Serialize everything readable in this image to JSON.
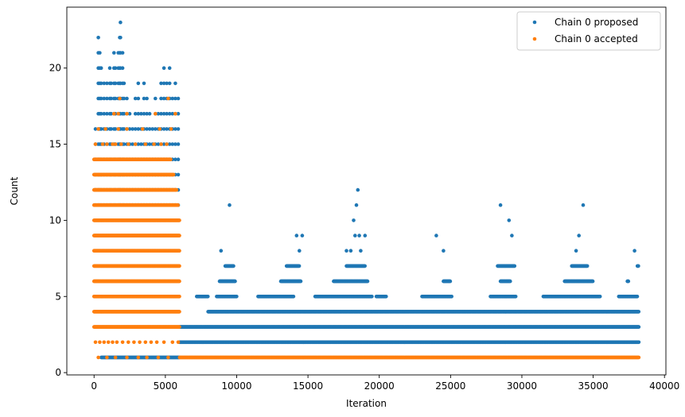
{
  "chart_data": {
    "type": "scatter",
    "title": "",
    "xlabel": "Iteration",
    "ylabel": "Count",
    "xlim": [
      -1910,
      40100
    ],
    "ylim": [
      -0.15,
      24.0
    ],
    "xticks": [
      0,
      5000,
      10000,
      15000,
      20000,
      25000,
      30000,
      35000,
      40000
    ],
    "xtick_labels": [
      "0",
      "5000",
      "10000",
      "15000",
      "20000",
      "25000",
      "30000",
      "35000",
      "40000"
    ],
    "yticks": [
      0,
      5,
      10,
      15,
      20
    ],
    "ytick_labels": [
      "0",
      "5",
      "10",
      "15",
      "20"
    ],
    "grid": false,
    "legend_position": "top-right",
    "series": [
      {
        "name": "Chain 0 proposed",
        "color": "#1f77b4",
        "marker": "circle",
        "bands": [
          {
            "y": 1,
            "x_ranges": [
              [
                500,
                6000
              ]
            ]
          },
          {
            "y": 2,
            "x_ranges": [
              [
                6000,
                38200
              ]
            ]
          },
          {
            "y": 3,
            "x_ranges": [
              [
                6000,
                38200
              ]
            ]
          },
          {
            "y": 4,
            "x_ranges": [
              [
                8000,
                38200
              ]
            ]
          },
          {
            "y": 5,
            "x_ranges": [
              [
                7200,
                8000
              ],
              [
                8600,
                10000
              ],
              [
                11500,
                14000
              ],
              [
                15500,
                19500
              ],
              [
                19800,
                20500
              ],
              [
                23000,
                25100
              ],
              [
                27800,
                29600
              ],
              [
                31500,
                35500
              ],
              [
                36800,
                38100
              ]
            ]
          },
          {
            "y": 6,
            "x_ranges": [
              [
                8800,
                9900
              ],
              [
                13100,
                14500
              ],
              [
                16800,
                19200
              ],
              [
                24500,
                25000
              ],
              [
                28500,
                29200
              ],
              [
                33000,
                35000
              ],
              [
                37400,
                37500
              ]
            ]
          },
          {
            "y": 7,
            "x_ranges": [
              [
                9200,
                9800
              ],
              [
                13500,
                14400
              ],
              [
                17700,
                19000
              ],
              [
                28300,
                29500
              ],
              [
                33500,
                34600
              ],
              [
                38100,
                38200
              ]
            ]
          }
        ],
        "points": [
          [
            8900,
            8
          ],
          [
            9500,
            11
          ],
          [
            14200,
            9
          ],
          [
            14400,
            8
          ],
          [
            14600,
            9
          ],
          [
            17700,
            8
          ],
          [
            18000,
            8
          ],
          [
            18200,
            10
          ],
          [
            18300,
            9
          ],
          [
            18400,
            11
          ],
          [
            18500,
            12
          ],
          [
            18600,
            9
          ],
          [
            18700,
            8
          ],
          [
            19000,
            9
          ],
          [
            24000,
            9
          ],
          [
            24500,
            8
          ],
          [
            28500,
            11
          ],
          [
            29100,
            10
          ],
          [
            29300,
            9
          ],
          [
            33800,
            8
          ],
          [
            34000,
            9
          ],
          [
            34300,
            11
          ],
          [
            37900,
            8
          ]
        ],
        "early_column_maxima": [
          [
            100,
            16
          ],
          [
            300,
            22
          ],
          [
            400,
            21
          ],
          [
            500,
            20
          ],
          [
            700,
            19
          ],
          [
            900,
            19
          ],
          [
            1100,
            20
          ],
          [
            1200,
            19
          ],
          [
            1400,
            21
          ],
          [
            1500,
            20
          ],
          [
            1700,
            21
          ],
          [
            1800,
            22
          ],
          [
            1850,
            23
          ],
          [
            2000,
            21
          ],
          [
            2100,
            19
          ],
          [
            2300,
            18
          ],
          [
            2500,
            17
          ],
          [
            2700,
            16
          ],
          [
            2900,
            18
          ],
          [
            3100,
            19
          ],
          [
            3300,
            17
          ],
          [
            3500,
            19
          ],
          [
            3700,
            18
          ],
          [
            3900,
            17
          ],
          [
            4100,
            16
          ],
          [
            4300,
            18
          ],
          [
            4500,
            17
          ],
          [
            4700,
            19
          ],
          [
            4900,
            20
          ],
          [
            5100,
            19
          ],
          [
            5300,
            20
          ],
          [
            5500,
            18
          ],
          [
            5700,
            19
          ],
          [
            5900,
            18
          ]
        ]
      },
      {
        "name": "Chain 0 accepted",
        "color": "#ff7f0e",
        "marker": "circle",
        "bands": [
          {
            "y": 1,
            "x_ranges": [
              [
                6000,
                38200
              ]
            ]
          },
          {
            "y": 3,
            "x_ranges": [
              [
                0,
                6000
              ]
            ]
          },
          {
            "y": 4,
            "x_ranges": [
              [
                0,
                6000
              ]
            ]
          },
          {
            "y": 5,
            "x_ranges": [
              [
                0,
                6000
              ]
            ]
          },
          {
            "y": 6,
            "x_ranges": [
              [
                0,
                6000
              ]
            ]
          },
          {
            "y": 7,
            "x_ranges": [
              [
                0,
                6000
              ]
            ]
          },
          {
            "y": 8,
            "x_ranges": [
              [
                0,
                6000
              ]
            ]
          },
          {
            "y": 9,
            "x_ranges": [
              [
                0,
                6000
              ]
            ]
          },
          {
            "y": 10,
            "x_ranges": [
              [
                0,
                6000
              ]
            ]
          },
          {
            "y": 11,
            "x_ranges": [
              [
                0,
                5900
              ]
            ]
          },
          {
            "y": 12,
            "x_ranges": [
              [
                0,
                5800
              ]
            ]
          },
          {
            "y": 13,
            "x_ranges": [
              [
                0,
                5600
              ]
            ]
          },
          {
            "y": 14,
            "x_ranges": [
              [
                0,
                5400
              ]
            ]
          }
        ],
        "points": [
          [
            100,
            2
          ],
          [
            400,
            2
          ],
          [
            700,
            2
          ],
          [
            1000,
            2
          ],
          [
            1300,
            2
          ],
          [
            1600,
            2
          ],
          [
            2000,
            2
          ],
          [
            2400,
            2
          ],
          [
            2800,
            2
          ],
          [
            3200,
            2
          ],
          [
            3600,
            2
          ],
          [
            4000,
            2
          ],
          [
            4400,
            2
          ],
          [
            4900,
            2
          ],
          [
            5500,
            2
          ],
          [
            5900,
            2
          ],
          [
            300,
            1
          ],
          [
            900,
            1
          ],
          [
            1500,
            1
          ],
          [
            2300,
            1
          ],
          [
            3100,
            1
          ],
          [
            3700,
            1
          ],
          [
            4500,
            1
          ],
          [
            5200,
            1
          ],
          [
            100,
            15
          ],
          [
            600,
            15
          ],
          [
            900,
            15
          ],
          [
            1300,
            15
          ],
          [
            1500,
            15
          ],
          [
            1900,
            15
          ],
          [
            2400,
            15
          ],
          [
            2900,
            15
          ],
          [
            3600,
            15
          ],
          [
            4200,
            15
          ],
          [
            4700,
            15
          ],
          [
            5100,
            15
          ],
          [
            300,
            16
          ],
          [
            800,
            16
          ],
          [
            1700,
            16
          ],
          [
            2300,
            16
          ],
          [
            3400,
            16
          ],
          [
            4600,
            16
          ],
          [
            5400,
            16
          ],
          [
            1400,
            17
          ],
          [
            1700,
            17
          ],
          [
            2300,
            17
          ],
          [
            4300,
            17
          ],
          [
            5700,
            17
          ],
          [
            1800,
            18
          ],
          [
            5200,
            18
          ]
        ]
      }
    ]
  }
}
